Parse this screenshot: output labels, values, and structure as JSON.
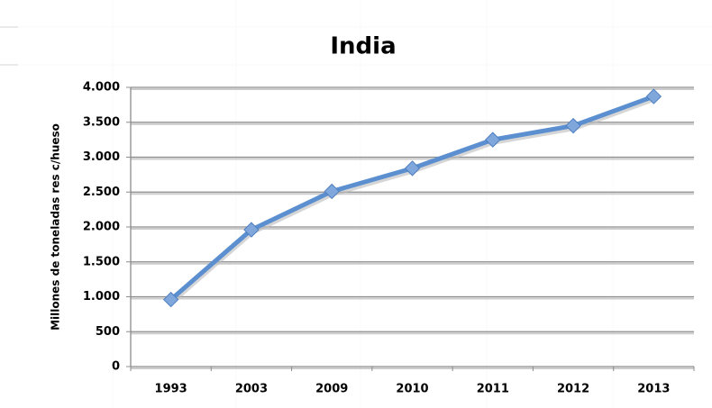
{
  "chart_data": {
    "type": "line",
    "title": "India",
    "y_label": "Millones de toneladas res c/hueso",
    "categories": [
      "1993",
      "2003",
      "2009",
      "2010",
      "2011",
      "2012",
      "2013"
    ],
    "series": [
      {
        "name": "India",
        "color": "#5b8fd0",
        "values": [
          960,
          1960,
          2510,
          2840,
          3250,
          3450,
          3870
        ]
      }
    ],
    "ylim": [
      0,
      4000
    ],
    "yticks": [
      0,
      500,
      {
        "value": 1000,
        "label": "1.000"
      },
      {
        "value": 1500,
        "label": "1.500"
      },
      {
        "value": 2000,
        "label": "2.000"
      },
      {
        "value": 2500,
        "label": "2.500"
      },
      {
        "value": 3000,
        "label": "3.000"
      },
      {
        "value": 3500,
        "label": "3.500"
      },
      {
        "value": 4000,
        "label": "4.000"
      }
    ],
    "grid": true
  }
}
